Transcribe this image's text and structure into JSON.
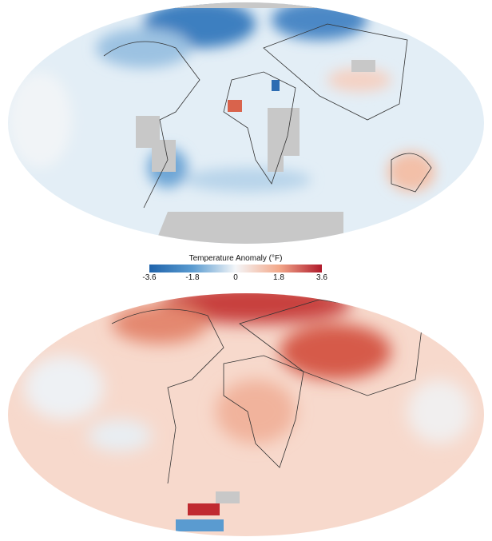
{
  "maps": [
    {
      "name": "cold-anomaly-map",
      "colors": {
        "base": "#dce9f3",
        "land_nodata": "#c8c8c8"
      }
    },
    {
      "name": "warm-anomaly-map",
      "colors": {
        "base": "#f8d6c8",
        "land_nodata": "#c8c8c8"
      }
    }
  ],
  "legend": {
    "title": "Temperature Anomaly (°F)",
    "ticks": [
      "-3.6",
      "-1.8",
      "0",
      "1.8",
      "3.6"
    ],
    "colors": {
      "min": "#1f63ab",
      "mid": "#f4f6f8",
      "max": "#b01a2b"
    }
  }
}
